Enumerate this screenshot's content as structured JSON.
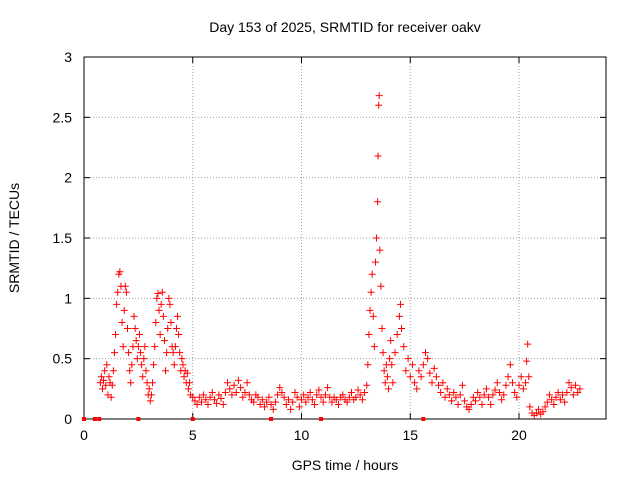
{
  "chart_data": {
    "type": "scatter",
    "title": "Day 153 of 2025, SRMTID for receiver oakv",
    "xlabel": "GPS time / hours",
    "ylabel": "SRMTID / TECUs",
    "xlim": [
      0,
      24
    ],
    "ylim": [
      0,
      3
    ],
    "xticks": [
      0,
      5,
      10,
      15,
      20
    ],
    "yticks": [
      0,
      0.5,
      1,
      1.5,
      2,
      2.5,
      3
    ],
    "ytick_labels": [
      "0",
      "0.5",
      "1",
      "1.5",
      "2",
      "2.5",
      "3"
    ],
    "grid": true,
    "marker": "+",
    "marker_color": "#ff0000",
    "series": [
      {
        "name": "SRMTID",
        "points": [
          [
            0.75,
            0.3
          ],
          [
            0.8,
            0.35
          ],
          [
            0.85,
            0.25
          ],
          [
            0.9,
            0.32
          ],
          [
            0.95,
            0.4
          ],
          [
            1.0,
            0.28
          ],
          [
            1.05,
            0.45
          ],
          [
            1.1,
            0.2
          ],
          [
            1.15,
            0.35
          ],
          [
            1.2,
            0.3
          ],
          [
            1.25,
            0.18
          ],
          [
            1.3,
            0.28
          ],
          [
            1.35,
            0.4
          ],
          [
            1.4,
            0.55
          ],
          [
            1.45,
            0.7
          ],
          [
            1.5,
            0.95
          ],
          [
            1.55,
            1.05
          ],
          [
            1.6,
            1.2
          ],
          [
            1.65,
            1.22
          ],
          [
            1.7,
            1.1
          ],
          [
            1.75,
            0.8
          ],
          [
            1.8,
            0.6
          ],
          [
            1.85,
            0.9
          ],
          [
            1.9,
            1.1
          ],
          [
            1.95,
            1.05
          ],
          [
            2.0,
            0.75
          ],
          [
            2.05,
            0.55
          ],
          [
            2.1,
            0.4
          ],
          [
            2.15,
            0.3
          ],
          [
            2.2,
            0.45
          ],
          [
            2.25,
            0.6
          ],
          [
            2.3,
            0.85
          ],
          [
            2.35,
            0.75
          ],
          [
            2.4,
            0.65
          ],
          [
            2.45,
            0.5
          ],
          [
            2.5,
            0.6
          ],
          [
            2.55,
            0.7
          ],
          [
            2.6,
            0.55
          ],
          [
            2.65,
            0.45
          ],
          [
            2.7,
            0.35
          ],
          [
            2.75,
            0.5
          ],
          [
            2.8,
            0.6
          ],
          [
            2.85,
            0.4
          ],
          [
            2.9,
            0.3
          ],
          [
            2.95,
            0.2
          ],
          [
            3.0,
            0.25
          ],
          [
            3.05,
            0.15
          ],
          [
            3.1,
            0.2
          ],
          [
            3.15,
            0.3
          ],
          [
            3.2,
            0.45
          ],
          [
            3.25,
            0.6
          ],
          [
            3.3,
            0.8
          ],
          [
            3.35,
            1.0
          ],
          [
            3.4,
            1.04
          ],
          [
            3.45,
            0.9
          ],
          [
            3.5,
            0.7
          ],
          [
            3.55,
            0.95
          ],
          [
            3.6,
            1.05
          ],
          [
            3.65,
            0.85
          ],
          [
            3.7,
            0.65
          ],
          [
            3.75,
            0.4
          ],
          [
            3.8,
            0.55
          ],
          [
            3.85,
            0.75
          ],
          [
            3.9,
            1.0
          ],
          [
            3.95,
            0.95
          ],
          [
            4.0,
            0.8
          ],
          [
            4.05,
            0.6
          ],
          [
            4.1,
            0.55
          ],
          [
            4.15,
            0.45
          ],
          [
            4.2,
            0.6
          ],
          [
            4.25,
            0.75
          ],
          [
            4.3,
            0.85
          ],
          [
            4.35,
            0.7
          ],
          [
            4.4,
            0.55
          ],
          [
            4.45,
            0.4
          ],
          [
            4.5,
            0.5
          ],
          [
            4.55,
            0.45
          ],
          [
            4.6,
            0.35
          ],
          [
            4.65,
            0.4
          ],
          [
            4.7,
            0.3
          ],
          [
            4.75,
            0.38
          ],
          [
            4.8,
            0.25
          ],
          [
            4.85,
            0.3
          ],
          [
            4.9,
            0.2
          ],
          [
            5.0,
            0.18
          ],
          [
            5.1,
            0.15
          ],
          [
            5.2,
            0.12
          ],
          [
            5.3,
            0.18
          ],
          [
            5.4,
            0.14
          ],
          [
            5.5,
            0.2
          ],
          [
            5.6,
            0.16
          ],
          [
            5.7,
            0.12
          ],
          [
            5.8,
            0.18
          ],
          [
            5.9,
            0.22
          ],
          [
            6.0,
            0.16
          ],
          [
            6.1,
            0.13
          ],
          [
            6.2,
            0.2
          ],
          [
            6.3,
            0.17
          ],
          [
            6.4,
            0.12
          ],
          [
            6.5,
            0.22
          ],
          [
            6.6,
            0.3
          ],
          [
            6.7,
            0.25
          ],
          [
            6.8,
            0.2
          ],
          [
            6.9,
            0.28
          ],
          [
            7.0,
            0.22
          ],
          [
            7.1,
            0.32
          ],
          [
            7.2,
            0.26
          ],
          [
            7.3,
            0.18
          ],
          [
            7.4,
            0.22
          ],
          [
            7.5,
            0.3
          ],
          [
            7.6,
            0.2
          ],
          [
            7.7,
            0.16
          ],
          [
            7.8,
            0.14
          ],
          [
            7.9,
            0.2
          ],
          [
            8.0,
            0.18
          ],
          [
            8.1,
            0.12
          ],
          [
            8.2,
            0.16
          ],
          [
            8.3,
            0.1
          ],
          [
            8.4,
            0.14
          ],
          [
            8.5,
            0.18
          ],
          [
            8.6,
            0.12
          ],
          [
            8.7,
            0.08
          ],
          [
            8.8,
            0.14
          ],
          [
            8.9,
            0.2
          ],
          [
            9.0,
            0.26
          ],
          [
            9.1,
            0.22
          ],
          [
            9.2,
            0.18
          ],
          [
            9.3,
            0.12
          ],
          [
            9.4,
            0.16
          ],
          [
            9.5,
            0.08
          ],
          [
            9.6,
            0.14
          ],
          [
            9.7,
            0.22
          ],
          [
            9.8,
            0.18
          ],
          [
            9.9,
            0.1
          ],
          [
            10.0,
            0.16
          ],
          [
            10.1,
            0.2
          ],
          [
            10.2,
            0.14
          ],
          [
            10.3,
            0.18
          ],
          [
            10.4,
            0.22
          ],
          [
            10.5,
            0.16
          ],
          [
            10.6,
            0.12
          ],
          [
            10.7,
            0.2
          ],
          [
            10.8,
            0.24
          ],
          [
            10.9,
            0.18
          ],
          [
            11.0,
            0.14
          ],
          [
            11.1,
            0.2
          ],
          [
            11.2,
            0.26
          ],
          [
            11.3,
            0.18
          ],
          [
            11.4,
            0.14
          ],
          [
            11.5,
            0.18
          ],
          [
            11.6,
            0.16
          ],
          [
            11.7,
            0.12
          ],
          [
            11.8,
            0.18
          ],
          [
            11.9,
            0.2
          ],
          [
            12.0,
            0.16
          ],
          [
            12.1,
            0.14
          ],
          [
            12.2,
            0.18
          ],
          [
            12.3,
            0.22
          ],
          [
            12.4,
            0.16
          ],
          [
            12.5,
            0.18
          ],
          [
            12.6,
            0.24
          ],
          [
            12.7,
            0.2
          ],
          [
            12.8,
            0.16
          ],
          [
            12.9,
            0.22
          ],
          [
            13.0,
            0.28
          ],
          [
            13.05,
            0.45
          ],
          [
            13.1,
            0.7
          ],
          [
            13.15,
            0.9
          ],
          [
            13.2,
            1.05
          ],
          [
            13.25,
            1.2
          ],
          [
            13.3,
            0.85
          ],
          [
            13.35,
            0.6
          ],
          [
            13.4,
            1.3
          ],
          [
            13.45,
            1.5
          ],
          [
            13.5,
            1.8
          ],
          [
            13.52,
            2.18
          ],
          [
            13.55,
            2.6
          ],
          [
            13.57,
            2.68
          ],
          [
            13.6,
            1.4
          ],
          [
            13.65,
            1.1
          ],
          [
            13.7,
            0.75
          ],
          [
            13.75,
            0.55
          ],
          [
            13.8,
            0.4
          ],
          [
            13.85,
            0.3
          ],
          [
            13.9,
            0.45
          ],
          [
            13.95,
            0.35
          ],
          [
            14.0,
            0.25
          ],
          [
            14.05,
            0.5
          ],
          [
            14.1,
            0.65
          ],
          [
            14.15,
            0.45
          ],
          [
            14.2,
            0.3
          ],
          [
            14.3,
            0.55
          ],
          [
            14.4,
            0.7
          ],
          [
            14.5,
            0.85
          ],
          [
            14.55,
            0.95
          ],
          [
            14.6,
            0.75
          ],
          [
            14.7,
            0.6
          ],
          [
            14.8,
            0.4
          ],
          [
            14.9,
            0.5
          ],
          [
            15.0,
            0.35
          ],
          [
            15.1,
            0.45
          ],
          [
            15.2,
            0.3
          ],
          [
            15.3,
            0.25
          ],
          [
            15.4,
            0.4
          ],
          [
            15.5,
            0.35
          ],
          [
            15.6,
            0.45
          ],
          [
            15.7,
            0.55
          ],
          [
            15.8,
            0.5
          ],
          [
            15.9,
            0.38
          ],
          [
            16.0,
            0.3
          ],
          [
            16.1,
            0.42
          ],
          [
            16.2,
            0.35
          ],
          [
            16.3,
            0.28
          ],
          [
            16.4,
            0.22
          ],
          [
            16.5,
            0.3
          ],
          [
            16.6,
            0.18
          ],
          [
            16.7,
            0.25
          ],
          [
            16.8,
            0.2
          ],
          [
            16.9,
            0.15
          ],
          [
            17.0,
            0.22
          ],
          [
            17.1,
            0.18
          ],
          [
            17.2,
            0.12
          ],
          [
            17.3,
            0.2
          ],
          [
            17.4,
            0.28
          ],
          [
            17.5,
            0.15
          ],
          [
            17.6,
            0.1
          ],
          [
            17.7,
            0.08
          ],
          [
            17.8,
            0.12
          ],
          [
            17.9,
            0.18
          ],
          [
            18.0,
            0.15
          ],
          [
            18.1,
            0.22
          ],
          [
            18.2,
            0.18
          ],
          [
            18.3,
            0.12
          ],
          [
            18.4,
            0.2
          ],
          [
            18.5,
            0.25
          ],
          [
            18.6,
            0.18
          ],
          [
            18.7,
            0.12
          ],
          [
            18.8,
            0.2
          ],
          [
            18.9,
            0.24
          ],
          [
            19.0,
            0.3
          ],
          [
            19.1,
            0.22
          ],
          [
            19.2,
            0.16
          ],
          [
            19.3,
            0.2
          ],
          [
            19.4,
            0.28
          ],
          [
            19.5,
            0.35
          ],
          [
            19.6,
            0.45
          ],
          [
            19.7,
            0.3
          ],
          [
            19.8,
            0.22
          ],
          [
            19.9,
            0.18
          ],
          [
            20.0,
            0.28
          ],
          [
            20.1,
            0.35
          ],
          [
            20.2,
            0.25
          ],
          [
            20.3,
            0.3
          ],
          [
            20.35,
            0.48
          ],
          [
            20.4,
            0.62
          ],
          [
            20.45,
            0.35
          ],
          [
            20.5,
            0.1
          ],
          [
            20.6,
            0.05
          ],
          [
            20.7,
            0.03
          ],
          [
            20.8,
            0.05
          ],
          [
            20.9,
            0.08
          ],
          [
            21.0,
            0.04
          ],
          [
            21.1,
            0.06
          ],
          [
            21.2,
            0.1
          ],
          [
            21.3,
            0.14
          ],
          [
            21.4,
            0.2
          ],
          [
            21.5,
            0.16
          ],
          [
            21.6,
            0.12
          ],
          [
            21.7,
            0.18
          ],
          [
            21.8,
            0.22
          ],
          [
            21.9,
            0.16
          ],
          [
            22.0,
            0.2
          ],
          [
            22.1,
            0.14
          ],
          [
            22.2,
            0.22
          ],
          [
            22.3,
            0.3
          ],
          [
            22.4,
            0.26
          ],
          [
            22.5,
            0.2
          ],
          [
            22.6,
            0.28
          ],
          [
            22.7,
            0.22
          ],
          [
            22.8,
            0.25
          ]
        ]
      }
    ],
    "axis_markers": [
      0.0,
      0.5,
      0.7,
      2.5,
      5.0,
      8.6,
      10.9,
      15.6
    ]
  }
}
